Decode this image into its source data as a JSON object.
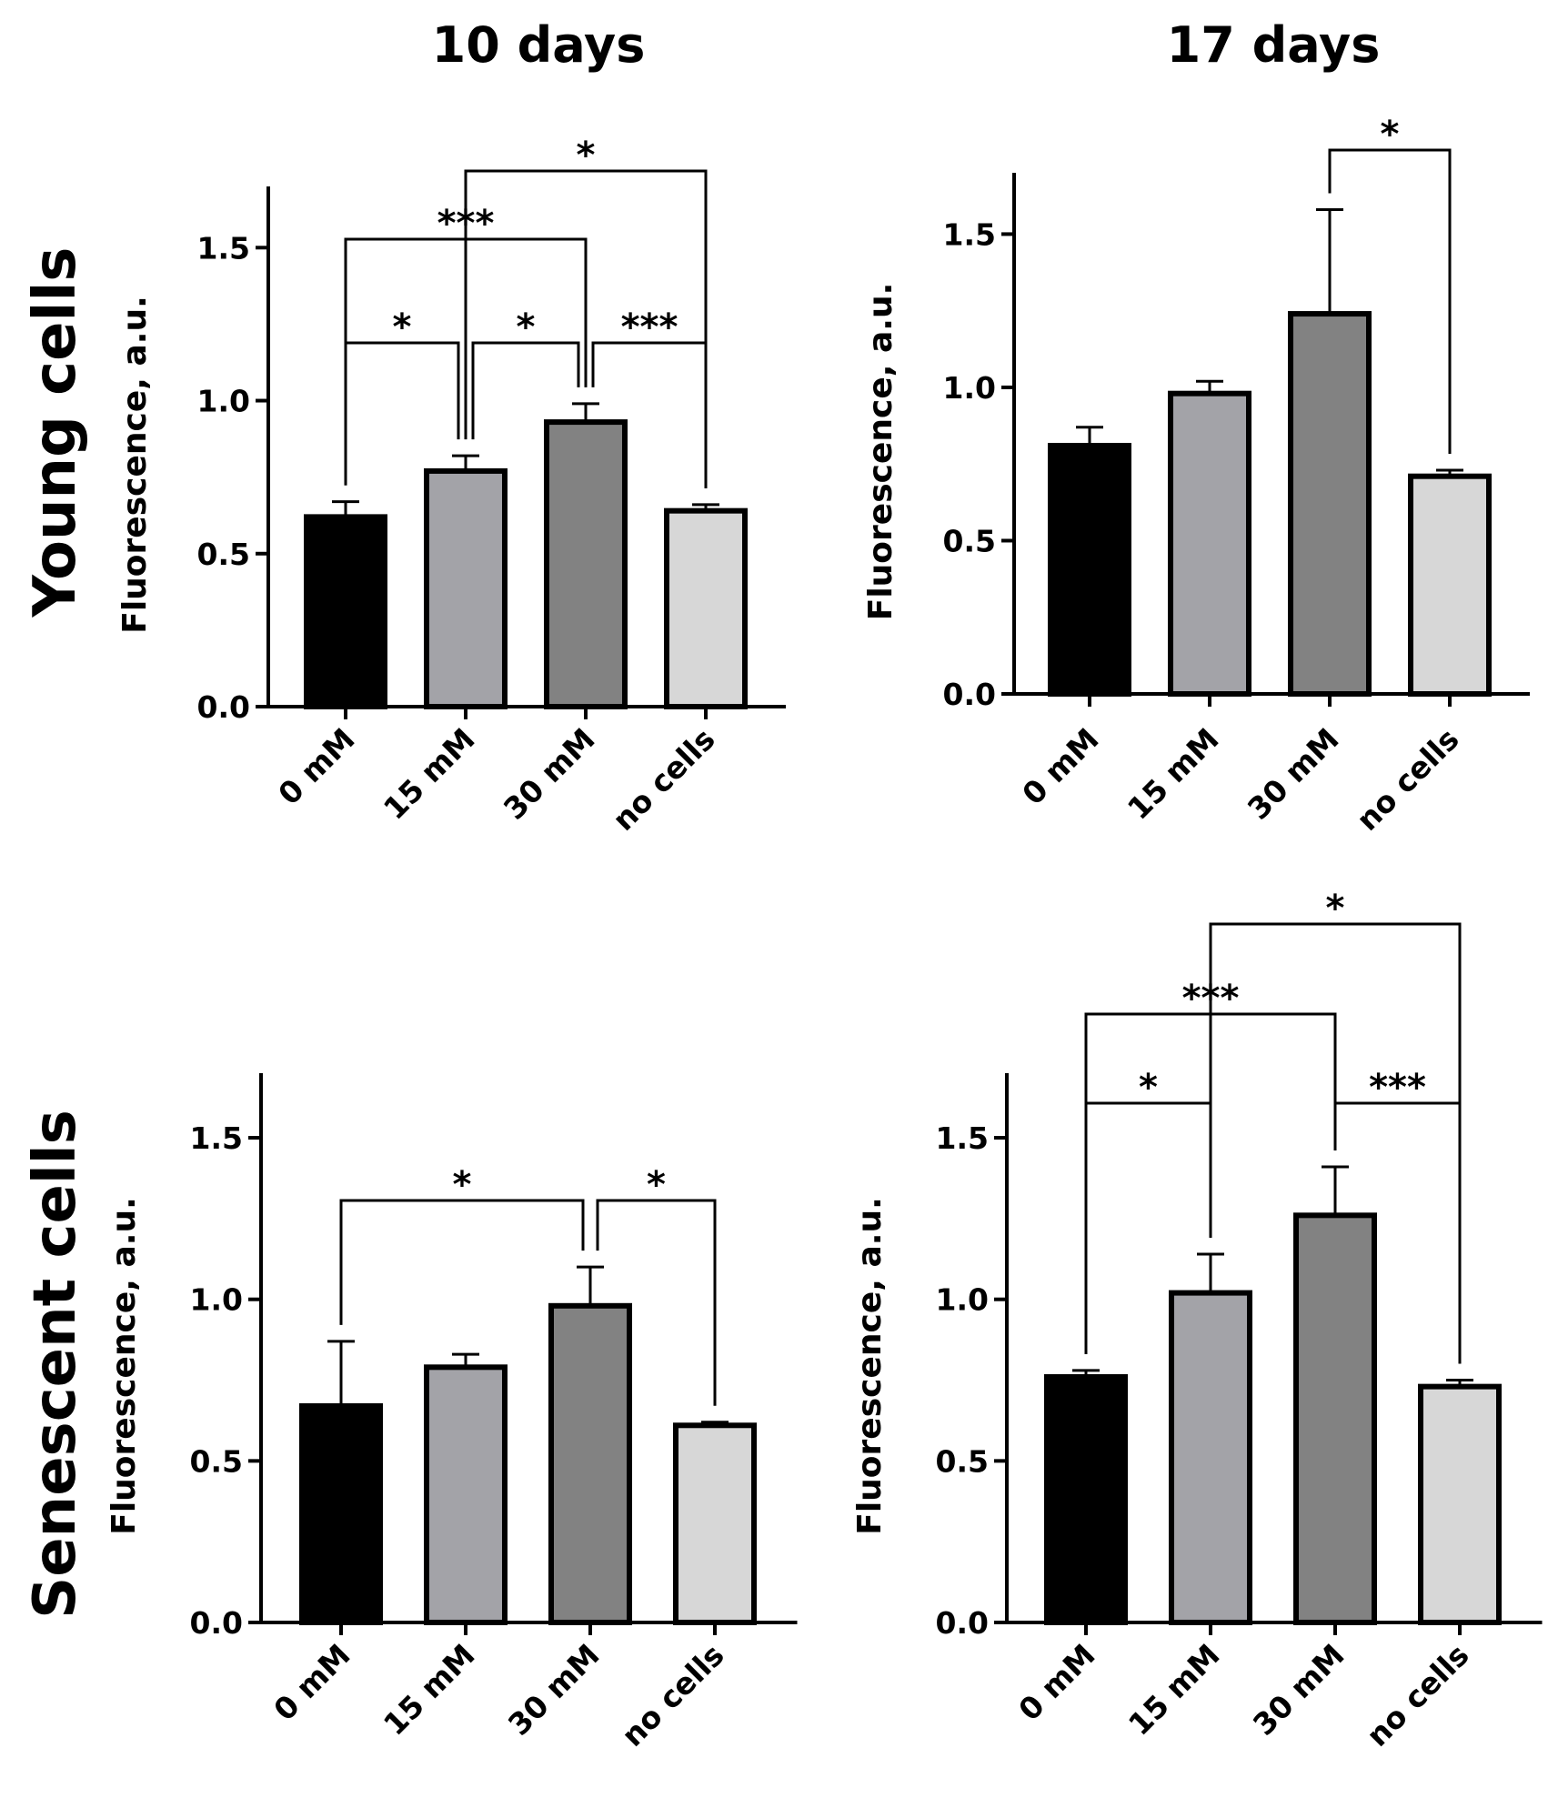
{
  "column_titles": [
    "10 days",
    "17 days"
  ],
  "row_titles": [
    "Young cells",
    "Senescent cells"
  ],
  "colors": {
    "bar_fills": [
      "#000000",
      "#a3a3a8",
      "#828282",
      "#d7d7d7"
    ],
    "stroke": "#000000"
  },
  "chart_data": [
    {
      "type": "bar",
      "panel": "young-10-days",
      "title": "",
      "xlabel": "",
      "ylabel": "Fluorescence, a.u.",
      "ylim": [
        0,
        1.7
      ],
      "yticks": [
        "0.0",
        "0.5",
        "1.0",
        "1.5"
      ],
      "ytick_values": [
        0,
        0.5,
        1.0,
        1.5
      ],
      "categories": [
        "0 mM",
        "15 mM",
        "30 mM",
        "no cells"
      ],
      "values": [
        0.62,
        0.77,
        0.93,
        0.64
      ],
      "errors": [
        0.05,
        0.05,
        0.06,
        0.02
      ],
      "significance": [
        {
          "from": 1,
          "to": 3,
          "label": "*"
        },
        {
          "from": 0,
          "to": 2,
          "label": "***"
        },
        {
          "from": 0,
          "to": 1,
          "label": "*"
        },
        {
          "from": 1,
          "to": 2,
          "label": "*"
        },
        {
          "from": 2,
          "to": 3,
          "label": "***"
        }
      ]
    },
    {
      "type": "bar",
      "panel": "young-17-days",
      "title": "",
      "xlabel": "",
      "ylabel": "Fluorescence, a.u.",
      "ylim": [
        0,
        1.7
      ],
      "yticks": [
        "0.0",
        "0.5",
        "1.0",
        "1.5"
      ],
      "ytick_values": [
        0,
        0.5,
        1.0,
        1.5
      ],
      "categories": [
        "0 mM",
        "15 mM",
        "30 mM",
        "no cells"
      ],
      "values": [
        0.81,
        0.98,
        1.24,
        0.71
      ],
      "errors": [
        0.06,
        0.04,
        0.34,
        0.02
      ],
      "significance": [
        {
          "from": 2,
          "to": 3,
          "label": "*"
        }
      ]
    },
    {
      "type": "bar",
      "panel": "senescent-10-days",
      "title": "",
      "xlabel": "",
      "ylabel": "Fluorescence, a.u.",
      "ylim": [
        0,
        1.7
      ],
      "yticks": [
        "0.0",
        "0.5",
        "1.0",
        "1.5"
      ],
      "ytick_values": [
        0,
        0.5,
        1.0,
        1.5
      ],
      "categories": [
        "0 mM",
        "15 mM",
        "30 mM",
        "no cells"
      ],
      "values": [
        0.67,
        0.79,
        0.98,
        0.61
      ],
      "errors": [
        0.2,
        0.04,
        0.12,
        0.01
      ],
      "significance": [
        {
          "from": 0,
          "to": 2,
          "label": "*"
        },
        {
          "from": 2,
          "to": 3,
          "label": "*"
        }
      ]
    },
    {
      "type": "bar",
      "panel": "senescent-17-days",
      "title": "",
      "xlabel": "",
      "ylabel": "Fluorescence, a.u.",
      "ylim": [
        0,
        1.7
      ],
      "yticks": [
        "0.0",
        "0.5",
        "1.0",
        "1.5"
      ],
      "ytick_values": [
        0,
        0.5,
        1.0,
        1.5
      ],
      "categories": [
        "0 mM",
        "15 mM",
        "30 mM",
        "no cells"
      ],
      "values": [
        0.76,
        1.02,
        1.26,
        0.73
      ],
      "errors": [
        0.02,
        0.12,
        0.15,
        0.02
      ],
      "significance": [
        {
          "from": 1,
          "to": 3,
          "label": "*"
        },
        {
          "from": 0,
          "to": 2,
          "label": "***"
        },
        {
          "from": 0,
          "to": 1,
          "label": "*"
        },
        {
          "from": 2,
          "to": 3,
          "label": "***"
        }
      ]
    }
  ]
}
